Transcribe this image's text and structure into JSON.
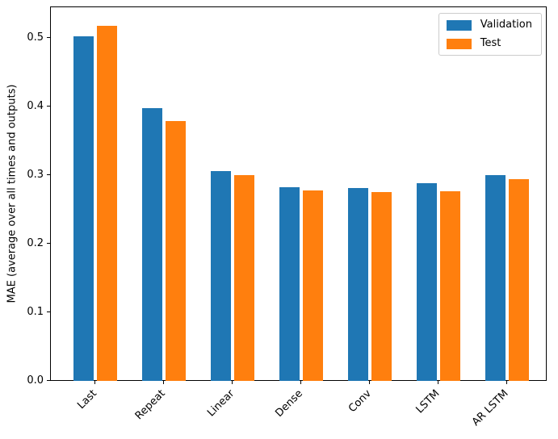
{
  "chart_data": {
    "type": "bar",
    "title": "",
    "xlabel": "",
    "ylabel": "MAE (average over all times and outputs)",
    "categories": [
      "Last",
      "Repeat",
      "Linear",
      "Dense",
      "Conv",
      "LSTM",
      "AR LSTM"
    ],
    "series": [
      {
        "name": "Validation",
        "color": "#1f77b4",
        "values": [
          0.503,
          0.398,
          0.306,
          0.282,
          0.281,
          0.288,
          0.3
        ]
      },
      {
        "name": "Test",
        "color": "#ff7f0e",
        "values": [
          0.518,
          0.379,
          0.3,
          0.278,
          0.275,
          0.277,
          0.294
        ]
      }
    ],
    "ylim": [
      0,
      0.546
    ],
    "yticks": [
      0.0,
      0.1,
      0.2,
      0.3,
      0.4,
      0.5
    ],
    "ytick_labels": [
      "0.0",
      "0.1",
      "0.2",
      "0.3",
      "0.4",
      "0.5"
    ],
    "xtick_rotation": 45,
    "bar_width": 0.3,
    "group_offset": 0.17,
    "legend_position": "upper right",
    "grid": false,
    "colors": {
      "axis": "#000000",
      "background": "#ffffff",
      "legend_border": "#cccccc"
    }
  }
}
